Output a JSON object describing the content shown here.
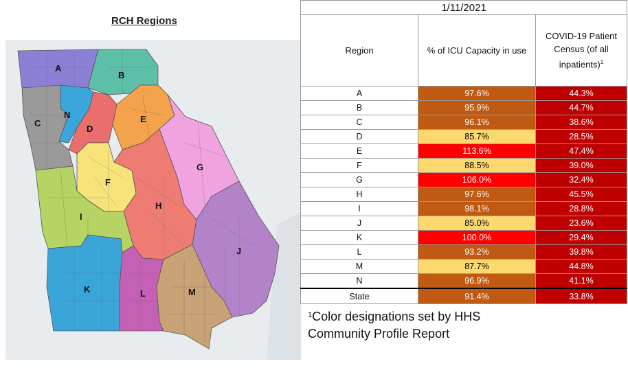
{
  "map": {
    "title": "RCH Regions",
    "regions": [
      {
        "id": "A",
        "color": "#8b7fd6"
      },
      {
        "id": "B",
        "color": "#5dbfa8"
      },
      {
        "id": "C",
        "color": "#9a9a9a"
      },
      {
        "id": "N",
        "color": "#3ba6dc"
      },
      {
        "id": "D",
        "color": "#ea6e6e"
      },
      {
        "id": "E",
        "color": "#f4a24c"
      },
      {
        "id": "F",
        "color": "#f6e37a"
      },
      {
        "id": "G",
        "color": "#f0a3df"
      },
      {
        "id": "H",
        "color": "#ee7c72"
      },
      {
        "id": "I",
        "color": "#b5d463"
      },
      {
        "id": "J",
        "color": "#b383c9"
      },
      {
        "id": "K",
        "color": "#3aa5d8"
      },
      {
        "id": "L",
        "color": "#c561b4"
      },
      {
        "id": "M",
        "color": "#c9a275"
      }
    ]
  },
  "table": {
    "date": "1/11/2021",
    "headers": {
      "region": "Region",
      "icu": "% of ICU Capacity in use",
      "census": "COVID-19 Patient Census (of all inpatients)",
      "census_sup": "1"
    },
    "rows": [
      {
        "region": "A",
        "icu": "97.6%",
        "icu_color": "orange",
        "census": "44.3%"
      },
      {
        "region": "B",
        "icu": "95.9%",
        "icu_color": "orange",
        "census": "44.7%"
      },
      {
        "region": "C",
        "icu": "96.1%",
        "icu_color": "orange",
        "census": "38.6%"
      },
      {
        "region": "D",
        "icu": "85.7%",
        "icu_color": "yellow",
        "census": "28.5%"
      },
      {
        "region": "E",
        "icu": "113.6%",
        "icu_color": "red",
        "census": "47.4%"
      },
      {
        "region": "F",
        "icu": "88.5%",
        "icu_color": "yellow",
        "census": "39.0%"
      },
      {
        "region": "G",
        "icu": "106.0%",
        "icu_color": "red",
        "census": "32.4%"
      },
      {
        "region": "H",
        "icu": "97.6%",
        "icu_color": "orange",
        "census": "45.5%"
      },
      {
        "region": "I",
        "icu": "98.1%",
        "icu_color": "orange",
        "census": "28.8%"
      },
      {
        "region": "J",
        "icu": "85.0%",
        "icu_color": "yellow",
        "census": "23.6%"
      },
      {
        "region": "K",
        "icu": "100.0%",
        "icu_color": "red",
        "census": "29.4%"
      },
      {
        "region": "L",
        "icu": "93.2%",
        "icu_color": "orange",
        "census": "39.8%"
      },
      {
        "region": "M",
        "icu": "87.7%",
        "icu_color": "yellow",
        "census": "44.8%"
      },
      {
        "region": "N",
        "icu": "96.9%",
        "icu_color": "orange",
        "census": "41.1%"
      }
    ],
    "state": {
      "region": "State",
      "icu": "91.4%",
      "icu_color": "orange",
      "census": "33.8%"
    },
    "colors": {
      "orange": "#c05a12",
      "yellow": "#fdd86f",
      "red": "#ff0000",
      "census": "#c00000"
    }
  },
  "footnote": {
    "sup": "1",
    "text": "Color designations set by HHS Community Profile Report"
  }
}
